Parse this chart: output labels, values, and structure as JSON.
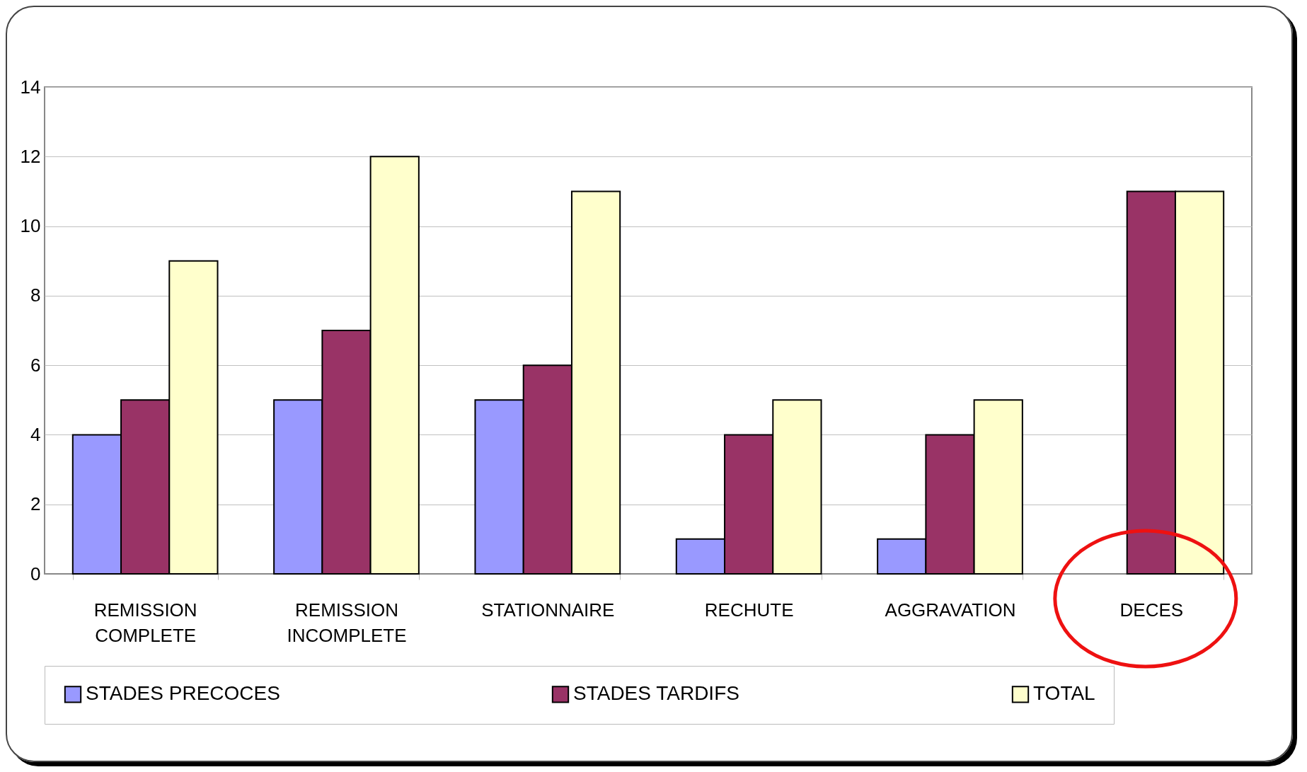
{
  "chart_data": {
    "type": "bar",
    "categories": [
      "REMISSION COMPLETE",
      "REMISSION INCOMPLETE",
      "STATIONNAIRE",
      "RECHUTE",
      "AGGRAVATION",
      "DECES"
    ],
    "series": [
      {
        "name": "STADES PRECOCES",
        "color": "#9999ff",
        "values": [
          4,
          5,
          5,
          1,
          1,
          null
        ]
      },
      {
        "name": "STADES TARDIFS",
        "color": "#993366",
        "values": [
          5,
          7,
          6,
          4,
          4,
          11
        ]
      },
      {
        "name": "TOTAL",
        "color": "#ffffcc",
        "values": [
          9,
          12,
          11,
          5,
          5,
          11
        ]
      }
    ],
    "ylim": [
      0,
      14
    ],
    "yticks": [
      0,
      2,
      4,
      6,
      8,
      10,
      12,
      14
    ],
    "grid": "y",
    "legend": "bottom"
  }
}
